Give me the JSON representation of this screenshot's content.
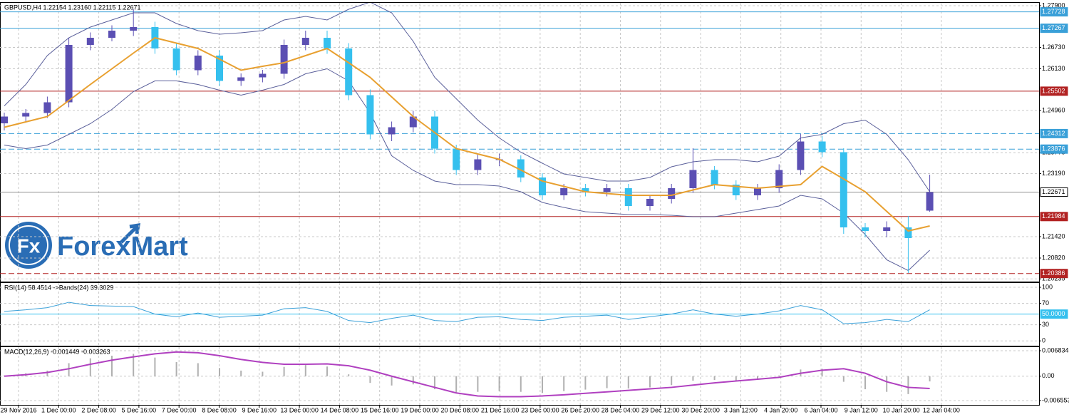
{
  "logo": {
    "mark": "Fx",
    "text": "ForexMart"
  },
  "chart_data": [
    {
      "type": "candlestick",
      "title": "GBPUSD,H4  1.22154 1.23160 1.22115 1.22671",
      "color_up": "#5b4fb3",
      "color_down": "#35c0ee",
      "grid": true,
      "open": [
        1.246,
        1.2479,
        1.2489,
        1.2519,
        1.268,
        1.27,
        1.272,
        1.273,
        1.267,
        1.2609,
        1.265,
        1.2579,
        1.2589,
        1.2599,
        1.268,
        1.27,
        1.267,
        1.2539,
        1.2429,
        1.2449,
        1.2479,
        1.2389,
        1.2329,
        1.2359,
        1.2359,
        1.2308,
        1.2258,
        1.2278,
        1.2268,
        1.2278,
        1.2228,
        1.2248,
        1.2278,
        1.2329,
        1.2288,
        1.2258,
        1.2278,
        1.2329,
        1.2409,
        1.2379,
        1.2168,
        1.2158,
        1.2168,
        1.2215
      ],
      "high": [
        1.249,
        1.25,
        1.2535,
        1.27,
        1.2715,
        1.2735,
        1.278,
        1.2745,
        1.2685,
        1.2665,
        1.2665,
        1.26,
        1.261,
        1.2695,
        1.272,
        1.272,
        1.2685,
        1.2555,
        1.2465,
        1.2495,
        1.2495,
        1.24,
        1.2375,
        1.2375,
        1.237,
        1.232,
        1.229,
        1.229,
        1.229,
        1.229,
        1.226,
        1.229,
        1.239,
        1.234,
        1.23,
        1.229,
        1.2345,
        1.243,
        1.2425,
        1.239,
        1.218,
        1.2185,
        1.22,
        1.2316
      ],
      "low": [
        1.244,
        1.2465,
        1.2475,
        1.2505,
        1.2665,
        1.269,
        1.2705,
        1.2655,
        1.2595,
        1.2595,
        1.2565,
        1.2565,
        1.2575,
        1.2585,
        1.2665,
        1.2655,
        1.2525,
        1.2415,
        1.241,
        1.2435,
        1.2375,
        1.2315,
        1.2315,
        1.234,
        1.2295,
        1.2245,
        1.2245,
        1.2255,
        1.2255,
        1.2215,
        1.2215,
        1.2235,
        1.2265,
        1.2275,
        1.2245,
        1.2245,
        1.2265,
        1.2315,
        1.2365,
        1.215,
        1.214,
        1.214,
        1.204,
        1.2212
      ],
      "close": [
        1.2479,
        1.2489,
        1.2519,
        1.268,
        1.27,
        1.272,
        1.273,
        1.267,
        1.2609,
        1.265,
        1.2579,
        1.2589,
        1.2599,
        1.268,
        1.27,
        1.267,
        1.2539,
        1.2429,
        1.2449,
        1.2479,
        1.2389,
        1.2329,
        1.2359,
        1.2359,
        1.2308,
        1.2258,
        1.2278,
        1.2268,
        1.2278,
        1.2228,
        1.2248,
        1.2278,
        1.2329,
        1.2288,
        1.2258,
        1.2278,
        1.2329,
        1.2409,
        1.2379,
        1.2168,
        1.2158,
        1.2168,
        1.2138,
        1.2267
      ],
      "ma": {
        "color": "#e8a030",
        "values": [
          1.2449,
          1.2464,
          1.2479,
          1.2524,
          1.2569,
          1.2613,
          1.2657,
          1.27,
          1.2685,
          1.267,
          1.264,
          1.2609,
          1.262,
          1.263,
          1.265,
          1.267,
          1.263,
          1.2589,
          1.2534,
          1.2479,
          1.2434,
          1.2389,
          1.2374,
          1.2359,
          1.2329,
          1.2298,
          1.2283,
          1.2268,
          1.2263,
          1.2258,
          1.2258,
          1.2258,
          1.2273,
          1.2288,
          1.2283,
          1.2278,
          1.2283,
          1.2288,
          1.2339,
          1.2304,
          1.2268,
          1.2213,
          1.2158,
          1.2172
        ]
      },
      "bands": {
        "color": "#5a5f9a",
        "upper": [
          1.2509,
          1.2569,
          1.265,
          1.27,
          1.273,
          1.275,
          1.277,
          1.277,
          1.274,
          1.272,
          1.271,
          1.2714,
          1.272,
          1.275,
          1.276,
          1.275,
          1.278,
          1.28,
          1.277,
          1.269,
          1.2589,
          1.2529,
          1.2469,
          1.2419,
          1.2379,
          1.2348,
          1.2318,
          1.2308,
          1.2298,
          1.2298,
          1.2308,
          1.2338,
          1.2352,
          1.2358,
          1.2358,
          1.2352,
          1.2368,
          1.2419,
          1.2429,
          1.2459,
          1.2469,
          1.2429,
          1.2358,
          1.2268
        ],
        "lower": [
          1.2399,
          1.2389,
          1.2399,
          1.2429,
          1.2459,
          1.2499,
          1.2549,
          1.2579,
          1.2579,
          1.2569,
          1.2553,
          1.2539,
          1.2553,
          1.2569,
          1.2599,
          1.2613,
          1.2579,
          1.2489,
          1.2369,
          1.2328,
          1.2298,
          1.2288,
          1.2288,
          1.2284,
          1.2268,
          1.2238,
          1.2224,
          1.2212,
          1.2208,
          1.2204,
          1.2204,
          1.2202,
          1.2198,
          1.2198,
          1.2208,
          1.2218,
          1.2228,
          1.2258,
          1.2248,
          1.2208,
          1.2148,
          1.2077,
          1.2047,
          1.2104
        ]
      },
      "levels": [
        {
          "value": 1.27728,
          "color": "#3aa0d8",
          "dashed": false
        },
        {
          "value": 1.27267,
          "color": "#3aa0d8",
          "dashed": false
        },
        {
          "value": 1.25502,
          "color": "#b22222",
          "dashed": false
        },
        {
          "value": 1.24312,
          "color": "#3aa0d8",
          "dashed": true
        },
        {
          "value": 1.23876,
          "color": "#3aa0d8",
          "dashed": true
        },
        {
          "value": 1.22671,
          "color": "#909090",
          "dashed": false
        },
        {
          "value": 1.21984,
          "color": "#b22222",
          "dashed": false
        },
        {
          "value": 1.20386,
          "color": "#b22222",
          "dashed": true
        }
      ],
      "ylim": [
        1.2016,
        1.2798
      ],
      "yticks": [
        {
          "value": 1.279,
          "label": "1.27900"
        },
        {
          "value": 1.2673,
          "label": "1.26730"
        },
        {
          "value": 1.2613,
          "label": "1.26130"
        },
        {
          "value": 1.2496,
          "label": "1.24960"
        },
        1.23775,
        {
          "value": 1.2319,
          "label": "1.23190"
        },
        {
          "value": 1.2142,
          "label": "1.21420"
        },
        {
          "value": 1.2082,
          "label": "1.20820"
        },
        1.20235
      ]
    },
    {
      "type": "line",
      "title": "RSI(14) 58.4514  ->Bands(24) 39.3029",
      "color": "#3aa0d8",
      "grid": true,
      "values": [
        55,
        58,
        62,
        72,
        66,
        65,
        64,
        50,
        45,
        52,
        44,
        46,
        48,
        60,
        62,
        55,
        38,
        34,
        42,
        48,
        38,
        36,
        44,
        45,
        40,
        38,
        44,
        46,
        48,
        40,
        45,
        50,
        58,
        50,
        46,
        50,
        56,
        66,
        58,
        32,
        34,
        40,
        36,
        58
      ],
      "levels": [
        {
          "value": 50,
          "label": "50.0000",
          "color": "#35c0ee",
          "dashed": false
        }
      ],
      "ylim": [
        -9,
        108
      ],
      "yticks": [
        100,
        70,
        30,
        0
      ]
    },
    {
      "type": "macd",
      "title": "MACD(12,26,9) -0.001449 -0.003263",
      "color": "#b0b0b0",
      "grid": true,
      "values": [
        0.0002,
        0.0008,
        0.0015,
        0.0035,
        0.0048,
        0.0055,
        0.006,
        0.005,
        0.0038,
        0.0035,
        0.0022,
        0.0015,
        0.0012,
        0.0025,
        0.003,
        0.0026,
        0.0005,
        -0.0018,
        -0.0025,
        -0.0022,
        -0.0035,
        -0.0045,
        -0.0042,
        -0.004,
        -0.0042,
        -0.0045,
        -0.004,
        -0.0036,
        -0.0032,
        -0.0033,
        -0.003,
        -0.0024,
        -0.0012,
        -0.001,
        -0.0012,
        -0.0008,
        0.0002,
        0.0018,
        0.002,
        -0.0015,
        -0.0035,
        -0.0042,
        -0.0048,
        -0.0014
      ],
      "signal": {
        "color": "#b040c0",
        "values": [
          0.0,
          0.0004,
          0.001,
          0.002,
          0.0032,
          0.0043,
          0.0052,
          0.006,
          0.0065,
          0.0063,
          0.0055,
          0.0045,
          0.0037,
          0.0032,
          0.0032,
          0.0033,
          0.0028,
          0.0016,
          0.0,
          -0.0015,
          -0.003,
          -0.0045,
          -0.0053,
          -0.0055,
          -0.0055,
          -0.0053,
          -0.005,
          -0.0046,
          -0.0042,
          -0.0038,
          -0.0034,
          -0.003,
          -0.0024,
          -0.0018,
          -0.0013,
          -0.0008,
          -0.0003,
          0.0008,
          0.0016,
          0.002,
          0.0008,
          -0.0015,
          -0.003,
          -0.0033
        ]
      },
      "ylim": [
        -0.0077,
        0.0078
      ],
      "yticks": [
        0.006834,
        {
          "value": 0,
          "label": "0.00"
        },
        -0.006553
      ],
      "x_tick_labels": [
        "29 Nov 2016",
        "1 Dec 00:00",
        "2 Dec 08:00",
        "5 Dec 16:00",
        "7 Dec 00:00",
        "8 Dec 08:00",
        "9 Dec 16:00",
        "13 Dec 00:00",
        "14 Dec 08:00",
        "15 Dec 16:00",
        "19 Dec 00:00",
        "20 Dec 08:00",
        "21 Dec 16:00",
        "23 Dec 00:00",
        "26 Dec 20:00",
        "28 Dec 04:00",
        "29 Dec 12:00",
        "30 Dec 20:00",
        "3 Jan 12:00",
        "4 Jan 20:00",
        "6 Jan 04:00",
        "9 Jan 12:00",
        "10 Jan 20:00",
        "12 Jan 04:00"
      ]
    }
  ]
}
